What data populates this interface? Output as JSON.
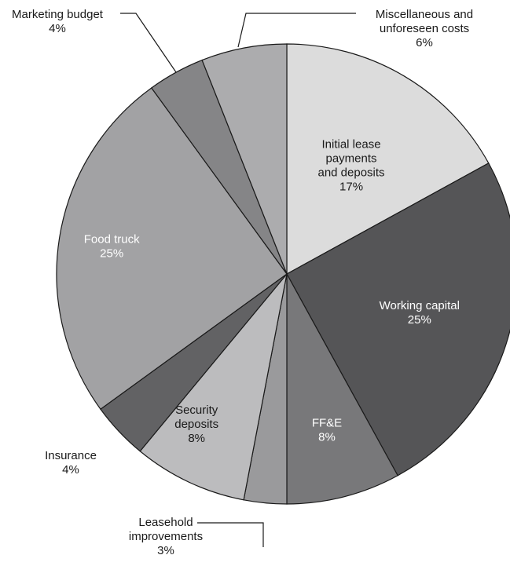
{
  "chart_data": {
    "type": "pie",
    "title": "",
    "slices": [
      {
        "label": [
          "Initial lease",
          "payments",
          "and deposits"
        ],
        "value": 17,
        "value_label": "17%",
        "color": "#dcdcdc",
        "text": "dark"
      },
      {
        "label": [
          "Working capital"
        ],
        "value": 25,
        "value_label": "25%",
        "color": "#555557",
        "text": "light"
      },
      {
        "label": [
          "FF&E"
        ],
        "value": 8,
        "value_label": "8%",
        "color": "#78787a",
        "text": "light"
      },
      {
        "label": [
          "Leasehold",
          "improvements"
        ],
        "value": 3,
        "value_label": "3%",
        "color": "#9a9a9c",
        "text": "dark"
      },
      {
        "label": [
          "Security",
          "deposits"
        ],
        "value": 8,
        "value_label": "8%",
        "color": "#bcbcbe",
        "text": "dark"
      },
      {
        "label": [
          "Insurance"
        ],
        "value": 4,
        "value_label": "4%",
        "color": "#626264",
        "text": "dark"
      },
      {
        "label": [
          "Food truck"
        ],
        "value": 25,
        "value_label": "25%",
        "color": "#a2a2a4",
        "text": "light"
      },
      {
        "label": [
          "Marketing budget"
        ],
        "value": 4,
        "value_label": "4%",
        "color": "#858587",
        "text": "dark"
      },
      {
        "label": [
          "Miscellaneous and",
          "unforeseen costs"
        ],
        "value": 6,
        "value_label": "6%",
        "color": "#acacae",
        "text": "dark"
      }
    ]
  }
}
